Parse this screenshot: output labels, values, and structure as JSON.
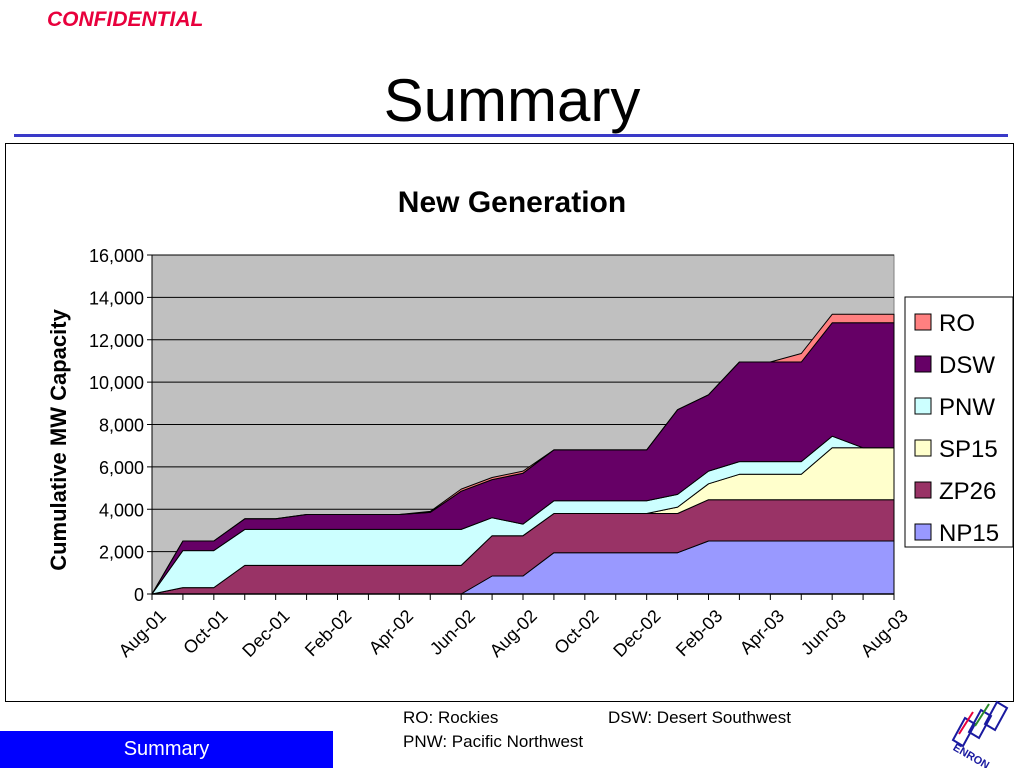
{
  "header": {
    "confidential": "CONFIDENTIAL",
    "title": "Summary"
  },
  "footer": {
    "tab_label": "Summary",
    "notes": {
      "ro": "RO: Rockies",
      "dsw": "DSW: Desert Southwest",
      "pnw": "PNW: Pacific Northwest"
    },
    "logo_text": "ENRON"
  },
  "chart_data": {
    "type": "area",
    "stacked": true,
    "title": "New Generation",
    "ylabel": "Cumulative MW Capacity",
    "xlabel": "",
    "ylim": [
      0,
      16000
    ],
    "yticks": [
      "0",
      "2,000",
      "4,000",
      "6,000",
      "8,000",
      "10,000",
      "12,000",
      "14,000",
      "16,000"
    ],
    "x": [
      "Aug-01",
      "Sep-01",
      "Oct-01",
      "Nov-01",
      "Dec-01",
      "Jan-02",
      "Feb-02",
      "Mar-02",
      "Apr-02",
      "May-02",
      "Jun-02",
      "Jul-02",
      "Aug-02",
      "Sep-02",
      "Oct-02",
      "Nov-02",
      "Dec-02",
      "Jan-03",
      "Feb-03",
      "Mar-03",
      "Apr-03",
      "May-03",
      "Jun-03",
      "Jul-03",
      "Aug-03"
    ],
    "xtick_labels": [
      "Aug-01",
      "Oct-01",
      "Dec-01",
      "Feb-02",
      "Apr-02",
      "Jun-02",
      "Aug-02",
      "Oct-02",
      "Dec-02",
      "Feb-03",
      "Apr-03",
      "Jun-03",
      "Aug-03"
    ],
    "grid": true,
    "plot_background": "#c0c0c0",
    "legend_position": "right",
    "series": [
      {
        "name": "NP15",
        "color": "#9999ff",
        "values": [
          0,
          0,
          0,
          0,
          0,
          0,
          0,
          0,
          0,
          0,
          0,
          850,
          850,
          1950,
          1950,
          1950,
          1950,
          1950,
          2500,
          2500,
          2500,
          2500,
          2500,
          2500,
          2500
        ]
      },
      {
        "name": "ZP26",
        "color": "#993366",
        "values": [
          0,
          300,
          300,
          1350,
          1350,
          1350,
          1350,
          1350,
          1350,
          1350,
          1350,
          1900,
          1900,
          1850,
          1850,
          1850,
          1850,
          1850,
          1950,
          1950,
          1950,
          1950,
          1950,
          1950,
          1950
        ]
      },
      {
        "name": "SP15",
        "color": "#ffffcc",
        "values": [
          0,
          0,
          0,
          0,
          0,
          0,
          0,
          0,
          0,
          0,
          0,
          0,
          0,
          0,
          0,
          0,
          0,
          300,
          750,
          1200,
          1200,
          1200,
          2450,
          2450,
          2450
        ]
      },
      {
        "name": "PNW",
        "color": "#ccffff",
        "values": [
          0,
          1750,
          1750,
          1700,
          1700,
          1700,
          1700,
          1700,
          1700,
          1700,
          1700,
          850,
          550,
          600,
          600,
          600,
          600,
          600,
          600,
          600,
          600,
          600,
          550,
          0,
          0
        ]
      },
      {
        "name": "DSW",
        "color": "#660066",
        "values": [
          0,
          450,
          450,
          500,
          500,
          700,
          700,
          700,
          700,
          800,
          1800,
          1800,
          2400,
          2400,
          2400,
          2400,
          2400,
          4000,
          3600,
          4700,
          4700,
          4700,
          5350,
          5900,
          5900
        ]
      },
      {
        "name": "RO",
        "color": "#ff8080",
        "values": [
          0,
          0,
          0,
          0,
          0,
          0,
          0,
          0,
          0,
          50,
          100,
          100,
          100,
          0,
          0,
          0,
          0,
          0,
          0,
          0,
          0,
          400,
          400,
          400,
          400
        ]
      }
    ]
  }
}
